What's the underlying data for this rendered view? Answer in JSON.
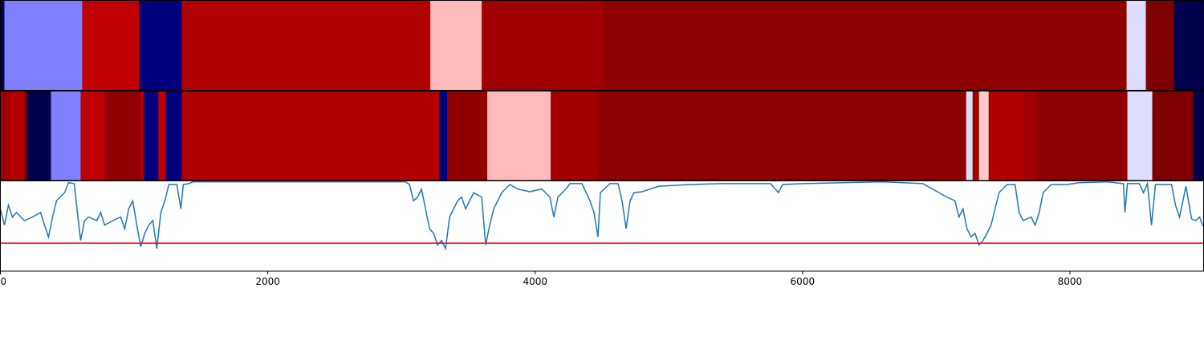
{
  "chart_data": [
    {
      "type": "segments",
      "xlim": [
        0,
        9000
      ],
      "bins": [
        0,
        30,
        612,
        1038,
        1356,
        3216,
        3600,
        4506,
        8424,
        8568,
        8778,
        9000
      ],
      "colors": [
        "#00004f",
        "#7f7fff",
        "#c00000",
        "#00007f",
        "#b00000",
        "#ffbbbb",
        "#a00000",
        "#8f0000",
        "#ddddff",
        "#7f0000",
        "#00004f"
      ]
    },
    {
      "type": "segments",
      "xlim": [
        0,
        9000
      ],
      "bins": [
        0,
        72,
        180,
        198,
        378,
        600,
        780,
        1050,
        1074,
        1182,
        1236,
        1356,
        3282,
        3342,
        3642,
        4116,
        4470,
        7224,
        7272,
        7320,
        7392,
        7650,
        7740,
        8430,
        8616,
        8922,
        9000
      ],
      "colors": [
        "#a00000",
        "#b00000",
        "#7f0000",
        "#00004f",
        "#7f7fff",
        "#c00000",
        "#900000",
        "#b00000",
        "#00007f",
        "#c00000",
        "#00007f",
        "#b00000",
        "#00007f",
        "#900000",
        "#ffbbbb",
        "#a00000",
        "#8f0000",
        "#ddddff",
        "#a00000",
        "#ffcccc",
        "#b00000",
        "#a00000",
        "#8f0000",
        "#ddddff",
        "#7f0000",
        "#00004f"
      ]
    },
    {
      "type": "line",
      "xlim": [
        0,
        9000
      ],
      "ylim": [
        0,
        1
      ],
      "xticks": [
        0,
        2000,
        4000,
        6000,
        8000
      ],
      "hline": {
        "value": 0.31,
        "color": "#ff0000"
      },
      "x": [
        0,
        30,
        60,
        90,
        120,
        180,
        240,
        300,
        330,
        360,
        390,
        420,
        480,
        510,
        552,
        570,
        600,
        630,
        660,
        720,
        750,
        780,
        840,
        900,
        930,
        960,
        990,
        1020,
        1050,
        1080,
        1110,
        1140,
        1170,
        1200,
        1230,
        1260,
        1320,
        1350,
        1368,
        1410,
        1440,
        3030,
        3060,
        3090,
        3120,
        3150,
        3180,
        3210,
        3240,
        3270,
        3300,
        3330,
        3360,
        3420,
        3450,
        3480,
        3540,
        3600,
        3630,
        3660,
        3690,
        3750,
        3810,
        3870,
        3960,
        4050,
        4110,
        4140,
        4170,
        4230,
        4260,
        4350,
        4410,
        4440,
        4470,
        4488,
        4560,
        4620,
        4650,
        4680,
        4710,
        4740,
        4800,
        4920,
        5160,
        5400,
        5760,
        5820,
        5850,
        6000,
        6600,
        6900,
        7020,
        7080,
        7140,
        7170,
        7200,
        7230,
        7260,
        7290,
        7320,
        7350,
        7380,
        7410,
        7440,
        7470,
        7530,
        7590,
        7620,
        7650,
        7710,
        7740,
        7770,
        7800,
        7860,
        7980,
        8070,
        8280,
        8400,
        8412,
        8430,
        8520,
        8550,
        8580,
        8610,
        8640,
        8760,
        8790,
        8820,
        8868,
        8910,
        8940,
        8970,
        8994
      ],
      "series": [
        {
          "color": "#1f77b4",
          "values": [
            0.69,
            0.51,
            0.73,
            0.6,
            0.65,
            0.56,
            0.6,
            0.65,
            0.51,
            0.38,
            0.6,
            0.78,
            0.87,
            0.98,
            0.97,
            0.73,
            0.34,
            0.56,
            0.6,
            0.56,
            0.65,
            0.51,
            0.56,
            0.6,
            0.47,
            0.69,
            0.78,
            0.51,
            0.27,
            0.42,
            0.51,
            0.56,
            0.25,
            0.65,
            0.78,
            0.96,
            0.96,
            0.69,
            0.96,
            0.97,
            0.99,
            0.99,
            0.96,
            0.78,
            0.82,
            0.91,
            0.69,
            0.47,
            0.42,
            0.29,
            0.34,
            0.25,
            0.6,
            0.78,
            0.82,
            0.69,
            0.87,
            0.82,
            0.29,
            0.51,
            0.69,
            0.87,
            0.96,
            0.91,
            0.88,
            0.91,
            0.82,
            0.6,
            0.82,
            0.91,
            0.97,
            0.97,
            0.78,
            0.65,
            0.38,
            0.87,
            0.97,
            0.97,
            0.78,
            0.47,
            0.78,
            0.87,
            0.88,
            0.94,
            0.96,
            0.97,
            0.97,
            0.87,
            0.96,
            0.97,
            0.99,
            0.97,
            0.87,
            0.82,
            0.78,
            0.6,
            0.69,
            0.47,
            0.38,
            0.42,
            0.29,
            0.34,
            0.42,
            0.51,
            0.69,
            0.87,
            0.96,
            0.96,
            0.65,
            0.56,
            0.6,
            0.51,
            0.65,
            0.87,
            0.96,
            0.96,
            0.98,
            0.99,
            0.97,
            0.65,
            0.97,
            0.97,
            0.87,
            0.97,
            0.51,
            0.96,
            0.96,
            0.73,
            0.6,
            0.94,
            0.58,
            0.56,
            0.6,
            0.5
          ]
        }
      ]
    }
  ]
}
